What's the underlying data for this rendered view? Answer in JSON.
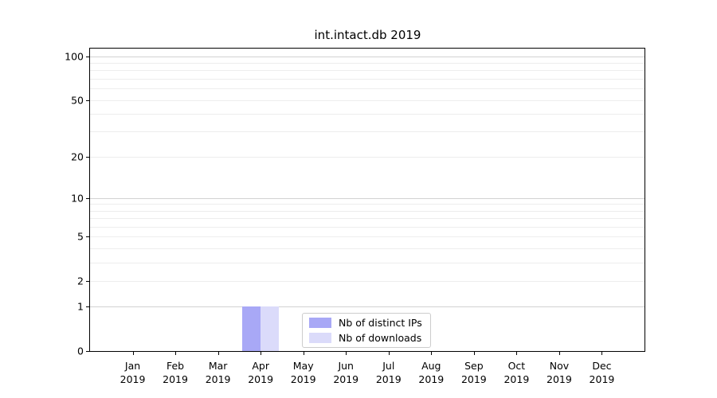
{
  "figure": {
    "title": "int.intact.db 2019"
  },
  "chart_data": {
    "type": "bar",
    "title": "int.intact.db 2019",
    "x_axis": {
      "months": [
        "Jan",
        "Feb",
        "Mar",
        "Apr",
        "May",
        "Jun",
        "Jul",
        "Aug",
        "Sep",
        "Oct",
        "Nov",
        "Dec"
      ],
      "year": "2019"
    },
    "y_axis": {
      "scale": "log1p",
      "tick_values": [
        0,
        1,
        2,
        5,
        10,
        20,
        50,
        100
      ],
      "top_value": 113,
      "minor_gridline_values": [
        2,
        3,
        4,
        5,
        6,
        7,
        8,
        9,
        20,
        30,
        40,
        50,
        60,
        70,
        80,
        90
      ],
      "major_gridline_values": [
        1,
        10,
        100
      ]
    },
    "series": [
      {
        "name": "Nb of distinct IPs",
        "color": "#a8a8f6",
        "values": [
          0,
          0,
          0,
          1,
          0,
          0,
          0,
          0,
          0,
          0,
          0,
          0
        ]
      },
      {
        "name": "Nb of downloads",
        "color": "#dbdbfa",
        "values": [
          0,
          0,
          0,
          1,
          0,
          0,
          0,
          0,
          0,
          0,
          0,
          0
        ]
      }
    ],
    "grid": {
      "minor_color": "#ededed",
      "major_color": "#d2d2d2"
    },
    "legend": {
      "position": "inside-bottom-center"
    }
  }
}
